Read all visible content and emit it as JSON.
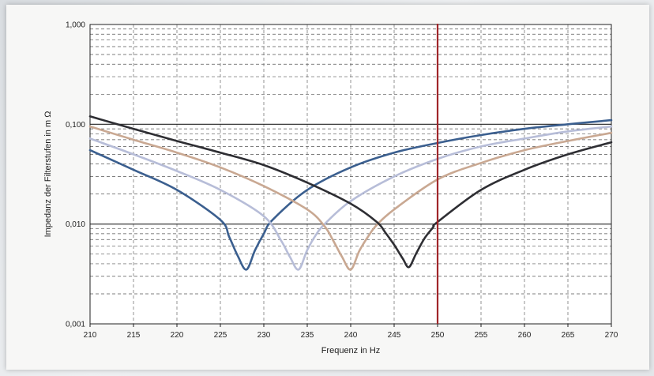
{
  "chart_data": {
    "type": "line",
    "xlabel": "Frequenz in Hz",
    "ylabel": "Impedanz der Filterstufen in m Ω",
    "x_ticks": [
      "210",
      "215",
      "220",
      "225",
      "230",
      "235",
      "240",
      "245",
      "250",
      "255",
      "260",
      "265",
      "270"
    ],
    "y_ticks": [
      "0,001",
      "0,010",
      "0,100",
      "1,000"
    ],
    "xlim": [
      210,
      270
    ],
    "ylim": [
      0.001,
      1.0
    ],
    "y_scale": "log",
    "grid": true,
    "vertical_marker": {
      "x": 250,
      "color": "#a0262a"
    },
    "series": [
      {
        "color": "#3b5f8f",
        "x": [
          210,
          215,
          220,
          225,
          226,
          227,
          228,
          229,
          230,
          231,
          235,
          240,
          245,
          250,
          255,
          260,
          265,
          270
        ],
        "y": [
          0.055,
          0.035,
          0.022,
          0.011,
          0.0075,
          0.0048,
          0.0035,
          0.0055,
          0.008,
          0.011,
          0.022,
          0.037,
          0.052,
          0.065,
          0.078,
          0.09,
          0.1,
          0.11
        ]
      },
      {
        "color": "#b7bdd8",
        "x": [
          210,
          215,
          220,
          225,
          230,
          232,
          233,
          234,
          235,
          236,
          237,
          240,
          245,
          250,
          255,
          260,
          265,
          270
        ],
        "y": [
          0.072,
          0.05,
          0.034,
          0.022,
          0.012,
          0.0068,
          0.0047,
          0.0035,
          0.0055,
          0.0078,
          0.01,
          0.017,
          0.03,
          0.045,
          0.06,
          0.072,
          0.085,
          0.095
        ]
      },
      {
        "color": "#c9a892",
        "x": [
          210,
          215,
          220,
          225,
          230,
          235,
          237,
          238,
          239,
          240,
          241,
          242,
          243,
          245,
          250,
          255,
          260,
          265,
          270
        ],
        "y": [
          0.095,
          0.07,
          0.052,
          0.037,
          0.024,
          0.014,
          0.0095,
          0.0068,
          0.0047,
          0.0035,
          0.0054,
          0.0075,
          0.0098,
          0.014,
          0.028,
          0.041,
          0.055,
          0.068,
          0.082
        ]
      },
      {
        "color": "#2e2e33",
        "x": [
          210,
          215,
          220,
          225,
          230,
          235,
          240,
          243,
          244,
          245,
          246,
          246.7,
          247.5,
          248.5,
          249.5,
          250,
          255,
          260,
          265,
          270
        ],
        "y": [
          0.12,
          0.09,
          0.068,
          0.052,
          0.039,
          0.026,
          0.016,
          0.0105,
          0.0082,
          0.0062,
          0.0045,
          0.0037,
          0.005,
          0.0072,
          0.0093,
          0.0105,
          0.022,
          0.035,
          0.05,
          0.066
        ]
      }
    ]
  }
}
